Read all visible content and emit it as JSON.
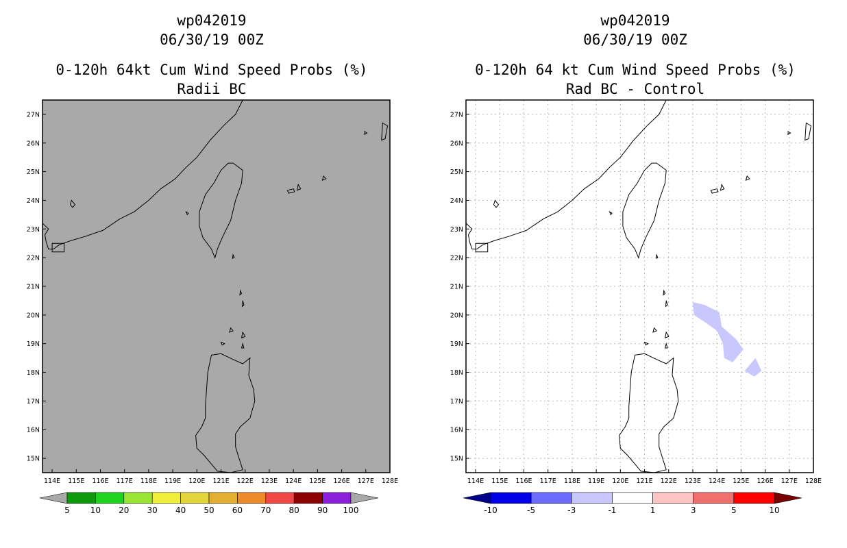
{
  "chart_data": [
    {
      "type": "heatmap",
      "title_lines": [
        "wp042019",
        "06/30/19 00Z",
        "0-120h 64kt Cum Wind Speed Probs (%)",
        "Radii BC"
      ],
      "xlabel": "",
      "ylabel": "",
      "xlim": [
        113.6,
        128.0
      ],
      "ylim": [
        14.5,
        27.5
      ],
      "x_ticks": [
        114,
        115,
        116,
        117,
        118,
        119,
        120,
        121,
        122,
        123,
        124,
        125,
        126,
        127,
        128
      ],
      "x_tick_labels": [
        "114E",
        "115E",
        "116E",
        "117E",
        "118E",
        "119E",
        "120E",
        "121E",
        "122E",
        "123E",
        "124E",
        "125E",
        "126E",
        "127E",
        "128E"
      ],
      "y_ticks": [
        15,
        16,
        17,
        18,
        19,
        20,
        21,
        22,
        23,
        24,
        25,
        26,
        27
      ],
      "y_tick_labels": [
        "15N",
        "16N",
        "17N",
        "18N",
        "19N",
        "20N",
        "21N",
        "22N",
        "23N",
        "24N",
        "25N",
        "26N",
        "27N"
      ],
      "grid": false,
      "field_background": "#a9a9a9",
      "filled_regions": [],
      "colorbar": {
        "boundaries": [
          5,
          10,
          20,
          30,
          40,
          50,
          60,
          70,
          80,
          90,
          100
        ],
        "labels": [
          "5",
          "10",
          "20",
          "30",
          "40",
          "50",
          "60",
          "70",
          "80",
          "90",
          "100"
        ],
        "below_color": "#a9a9a9",
        "above_color": "#a9a9a9",
        "colors": [
          "#0d9b0d",
          "#1fd41f",
          "#9be433",
          "#f0f03c",
          "#e3d53c",
          "#e2af30",
          "#ed8b2b",
          "#f04747",
          "#8c0000",
          "#8a1fdc"
        ]
      }
    },
    {
      "type": "heatmap",
      "title_lines": [
        "wp042019",
        "06/30/19 00Z",
        "0-120h 64 kt Cum Wind Speed Probs (%)",
        "Rad BC - Control"
      ],
      "xlabel": "",
      "ylabel": "",
      "xlim": [
        113.6,
        128.0
      ],
      "ylim": [
        14.5,
        27.5
      ],
      "x_ticks": [
        114,
        115,
        116,
        117,
        118,
        119,
        120,
        121,
        122,
        123,
        124,
        125,
        126,
        127,
        128
      ],
      "x_tick_labels": [
        "114E",
        "115E",
        "116E",
        "117E",
        "118E",
        "119E",
        "120E",
        "121E",
        "122E",
        "123E",
        "124E",
        "125E",
        "126E",
        "127E",
        "128E"
      ],
      "y_ticks": [
        15,
        16,
        17,
        18,
        19,
        20,
        21,
        22,
        23,
        24,
        25,
        26,
        27
      ],
      "y_tick_labels": [
        "15N",
        "16N",
        "17N",
        "18N",
        "19N",
        "20N",
        "21N",
        "22N",
        "23N",
        "24N",
        "25N",
        "26N",
        "27N"
      ],
      "grid": true,
      "field_background": "#ffffff",
      "filled_regions": [
        {
          "value_range": [
            -3,
            -1
          ],
          "color": "#c8c8ff",
          "polygon_lonlat": [
            [
              123.0,
              20.45
            ],
            [
              123.5,
              20.35
            ],
            [
              124.1,
              20.1
            ],
            [
              124.2,
              19.6
            ],
            [
              124.8,
              19.15
            ],
            [
              125.1,
              18.8
            ],
            [
              124.65,
              18.35
            ],
            [
              124.3,
              18.5
            ],
            [
              124.25,
              19.0
            ],
            [
              124.0,
              19.45
            ],
            [
              123.5,
              19.75
            ],
            [
              123.05,
              20.0
            ]
          ]
        },
        {
          "value_range": [
            -3,
            -1
          ],
          "color": "#c8c8ff",
          "polygon_lonlat": [
            [
              125.6,
              18.5
            ],
            [
              125.85,
              18.05
            ],
            [
              125.55,
              17.85
            ],
            [
              125.15,
              18.05
            ]
          ]
        }
      ],
      "colorbar": {
        "boundaries": [
          -10,
          -5,
          -3,
          -1,
          1,
          3,
          5,
          10
        ],
        "labels": [
          "-10",
          "-5",
          "-3",
          "-1",
          "1",
          "3",
          "5",
          "10"
        ],
        "below_color": "#00008a",
        "above_color": "#7a0000",
        "colors": [
          "#0000e8",
          "#6b6bff",
          "#c8c8ff",
          "#ffffff",
          "#ffc4c4",
          "#f07070",
          "#ff0000"
        ]
      }
    }
  ],
  "coastlines": {
    "china": [
      [
        121.9,
        27.5
      ],
      [
        121.6,
        27.0
      ],
      [
        121.1,
        26.6
      ],
      [
        120.55,
        26.1
      ],
      [
        120.0,
        25.5
      ],
      [
        119.55,
        25.15
      ],
      [
        119.1,
        24.75
      ],
      [
        118.5,
        24.4
      ],
      [
        118.0,
        24.0
      ],
      [
        117.4,
        23.6
      ],
      [
        116.8,
        23.35
      ],
      [
        116.1,
        22.95
      ],
      [
        115.4,
        22.75
      ],
      [
        114.8,
        22.6
      ],
      [
        114.3,
        22.45
      ],
      [
        114.05,
        22.3
      ],
      [
        113.85,
        22.3
      ],
      [
        113.75,
        22.55
      ],
      [
        113.7,
        22.8
      ],
      [
        113.85,
        23.0
      ],
      [
        113.6,
        23.2
      ]
    ],
    "taiwan": [
      [
        121.5,
        25.3
      ],
      [
        121.9,
        25.05
      ],
      [
        121.85,
        24.6
      ],
      [
        121.6,
        24.0
      ],
      [
        121.4,
        23.3
      ],
      [
        121.05,
        22.7
      ],
      [
        120.85,
        22.3
      ],
      [
        120.75,
        22.0
      ],
      [
        120.6,
        22.3
      ],
      [
        120.25,
        22.7
      ],
      [
        120.1,
        23.1
      ],
      [
        120.1,
        23.6
      ],
      [
        120.35,
        24.2
      ],
      [
        120.7,
        24.6
      ],
      [
        121.0,
        25.05
      ],
      [
        121.3,
        25.3
      ],
      [
        121.5,
        25.3
      ]
    ],
    "luzon": [
      [
        120.6,
        18.6
      ],
      [
        121.0,
        18.65
      ],
      [
        121.5,
        18.45
      ],
      [
        121.9,
        18.3
      ],
      [
        122.2,
        18.5
      ],
      [
        122.15,
        17.9
      ],
      [
        122.35,
        17.4
      ],
      [
        122.4,
        17.0
      ],
      [
        122.2,
        16.4
      ],
      [
        121.8,
        16.1
      ],
      [
        121.6,
        15.85
      ],
      [
        121.6,
        15.4
      ],
      [
        121.75,
        15.0
      ],
      [
        121.9,
        14.6
      ],
      [
        121.4,
        14.5
      ],
      [
        120.85,
        14.55
      ],
      [
        120.6,
        14.8
      ],
      [
        120.3,
        15.1
      ],
      [
        120.0,
        15.35
      ],
      [
        119.95,
        15.8
      ],
      [
        120.2,
        16.1
      ],
      [
        120.35,
        16.4
      ],
      [
        120.35,
        16.8
      ],
      [
        120.4,
        17.4
      ],
      [
        120.45,
        18.0
      ],
      [
        120.6,
        18.6
      ]
    ],
    "islands": [
      [
        [
          119.55,
          23.6
        ],
        [
          119.65,
          23.55
        ],
        [
          119.6,
          23.5
        ],
        [
          119.55,
          23.6
        ]
      ],
      [
        [
          114.8,
          24.0
        ],
        [
          114.95,
          23.85
        ],
        [
          114.85,
          23.75
        ],
        [
          114.75,
          23.85
        ],
        [
          114.8,
          24.0
        ]
      ],
      [
        [
          123.75,
          24.35
        ],
        [
          124.0,
          24.4
        ],
        [
          124.05,
          24.3
        ],
        [
          123.8,
          24.25
        ],
        [
          123.75,
          24.35
        ]
      ],
      [
        [
          124.2,
          24.55
        ],
        [
          124.3,
          24.4
        ],
        [
          124.15,
          24.35
        ],
        [
          124.2,
          24.55
        ]
      ],
      [
        [
          125.25,
          24.85
        ],
        [
          125.35,
          24.75
        ],
        [
          125.2,
          24.7
        ],
        [
          125.25,
          24.85
        ]
      ],
      [
        [
          126.95,
          26.4
        ],
        [
          127.05,
          26.35
        ],
        [
          126.95,
          26.3
        ],
        [
          126.95,
          26.4
        ]
      ],
      [
        [
          127.7,
          26.7
        ],
        [
          127.9,
          26.6
        ],
        [
          127.8,
          26.15
        ],
        [
          127.65,
          26.1
        ],
        [
          127.7,
          26.7
        ]
      ],
      [
        [
          121.5,
          22.1
        ],
        [
          121.55,
          22.0
        ],
        [
          121.48,
          21.98
        ],
        [
          121.5,
          22.1
        ]
      ],
      [
        [
          121.8,
          20.85
        ],
        [
          121.85,
          20.75
        ],
        [
          121.78,
          20.7
        ],
        [
          121.8,
          20.85
        ]
      ],
      [
        [
          121.9,
          20.5
        ],
        [
          121.95,
          20.35
        ],
        [
          121.88,
          20.3
        ],
        [
          121.9,
          20.5
        ]
      ],
      [
        [
          121.4,
          19.55
        ],
        [
          121.5,
          19.45
        ],
        [
          121.35,
          19.4
        ],
        [
          121.4,
          19.55
        ]
      ],
      [
        [
          121.9,
          19.4
        ],
        [
          122.0,
          19.25
        ],
        [
          121.85,
          19.2
        ],
        [
          121.9,
          19.4
        ]
      ],
      [
        [
          121.0,
          19.05
        ],
        [
          121.15,
          19.0
        ],
        [
          121.05,
          18.95
        ],
        [
          121.0,
          19.05
        ]
      ],
      [
        [
          121.9,
          19.0
        ],
        [
          121.95,
          18.85
        ],
        [
          121.85,
          18.85
        ],
        [
          121.9,
          19.0
        ]
      ],
      [
        [
          114.0,
          22.5
        ],
        [
          114.5,
          22.5
        ],
        [
          114.5,
          22.2
        ],
        [
          114.0,
          22.2
        ],
        [
          114.0,
          22.5
        ]
      ]
    ]
  }
}
